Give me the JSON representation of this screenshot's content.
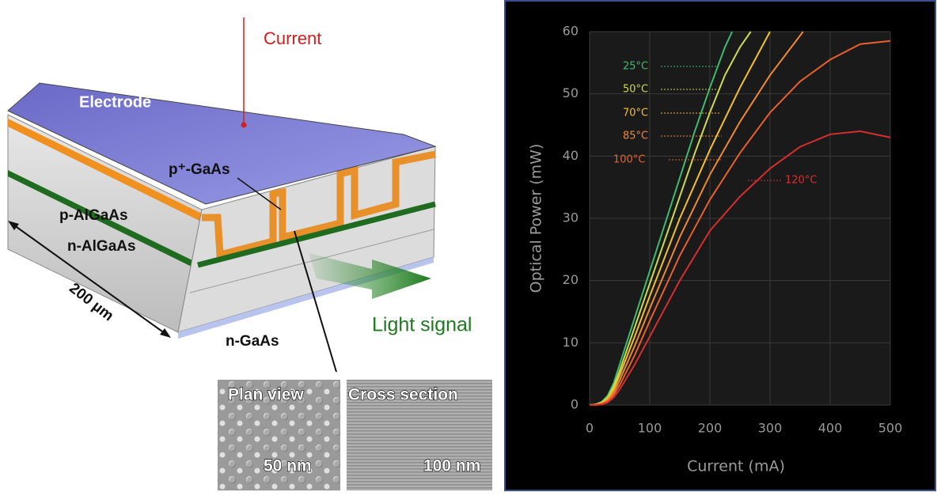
{
  "diagram": {
    "labels": {
      "current": "Current",
      "electrode": "Electrode",
      "p_gaas": "p⁺-GaAs",
      "p_algaas": "p-AlGaAs",
      "n_algaas": "n-AlGaAs",
      "length": "200 µm",
      "n_gaas": "n-GaAs",
      "light": "Light signal",
      "plan_view": "Plan view",
      "cross_section": "Cross section",
      "scale_plan": "50 nm",
      "scale_cross": "100 nm"
    }
  },
  "chart_data": {
    "type": "line",
    "x_label": "Current (mA)",
    "y_label": "Optical Power (mW)",
    "xlim": [
      0,
      500
    ],
    "ylim": [
      0,
      60
    ],
    "xticks": [
      0,
      100,
      200,
      300,
      400,
      500
    ],
    "yticks": [
      0,
      10,
      20,
      30,
      40,
      50,
      60
    ],
    "grid": true,
    "series": [
      {
        "name": "25°C",
        "color": "#3dbb6c",
        "x": [
          0,
          10,
          20,
          30,
          40,
          50,
          75,
          100,
          125,
          150,
          175,
          200,
          225,
          237
        ],
        "values": [
          0,
          0.1,
          0.5,
          1.5,
          3.5,
          6.5,
          14,
          21.5,
          29,
          36.5,
          44,
          51,
          57.5,
          60
        ]
      },
      {
        "name": "50°C",
        "color": "#cddb4c",
        "x": [
          0,
          10,
          20,
          30,
          40,
          50,
          75,
          100,
          125,
          150,
          175,
          200,
          225,
          250,
          268
        ],
        "values": [
          0,
          0.1,
          0.4,
          1.2,
          3,
          5.5,
          12.5,
          19.5,
          26.5,
          33.5,
          40.5,
          47,
          53,
          57.5,
          60
        ]
      },
      {
        "name": "70°C",
        "color": "#f3c02e",
        "x": [
          0,
          10,
          20,
          30,
          40,
          50,
          75,
          100,
          150,
          200,
          250,
          300
        ],
        "values": [
          0,
          0.1,
          0.3,
          1,
          2.5,
          4.8,
          11,
          17.5,
          30,
          41,
          51,
          60
        ]
      },
      {
        "name": "85°C",
        "color": "#f08a32",
        "x": [
          0,
          10,
          20,
          30,
          40,
          50,
          75,
          100,
          150,
          200,
          250,
          300,
          355
        ],
        "values": [
          0,
          0.05,
          0.2,
          0.8,
          2,
          4,
          9.5,
          15.5,
          27,
          37,
          45.5,
          53,
          60
        ]
      },
      {
        "name": "100°C",
        "color": "#e8602c",
        "x": [
          0,
          10,
          20,
          30,
          40,
          50,
          75,
          100,
          150,
          200,
          250,
          300,
          350,
          400,
          450,
          500
        ],
        "values": [
          0,
          0,
          0.2,
          0.6,
          1.6,
          3.2,
          8,
          13.5,
          24,
          33,
          40.5,
          47,
          52,
          55.5,
          58,
          58.5
        ]
      },
      {
        "name": "120°C",
        "color": "#d62e2e",
        "x": [
          0,
          10,
          20,
          30,
          40,
          50,
          75,
          100,
          150,
          200,
          250,
          300,
          350,
          400,
          450,
          500
        ],
        "values": [
          0,
          0,
          0.1,
          0.4,
          1.2,
          2.5,
          6.5,
          11,
          20,
          28,
          33.5,
          38,
          41.5,
          43.5,
          44,
          43
        ]
      }
    ]
  }
}
